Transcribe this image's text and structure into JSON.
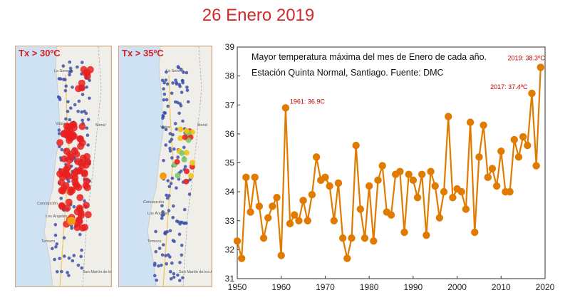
{
  "slide": {
    "title": "26 Enero 2019"
  },
  "maps": [
    {
      "label": "Tx > 30ºC"
    },
    {
      "label": "Tx > 35ºC"
    }
  ],
  "map_place_labels": {
    "la_serena": "La Serena",
    "valparaiso": "Valpa",
    "concepcion": "Concepción",
    "los_angeles": "Los Ángeles",
    "temuco": "Temuco",
    "mendoza": "Mend",
    "san_martin": "San Martín de los Andes"
  },
  "colors": {
    "series": "#e07b00",
    "annotation": "#c00000",
    "title": "#d22a2a",
    "hot_dot": "#e8201f",
    "station_dot": "#3c4fa8",
    "ocean": "#cfe2f3",
    "land": "#efeee9"
  },
  "chart_data": {
    "type": "line",
    "title": "Mayor temperatura máxima del mes de Enero de cada año.",
    "subtitle": "Estación Quinta Normal, Santiago. Fuente: DMC",
    "xlabel": "",
    "ylabel": "",
    "xlim": [
      1950,
      2020
    ],
    "ylim": [
      31,
      39
    ],
    "xticks": [
      1950,
      1960,
      1970,
      1980,
      1990,
      2000,
      2010,
      2020
    ],
    "yticks": [
      31,
      32,
      33,
      34,
      35,
      36,
      37,
      38,
      39
    ],
    "grid": false,
    "x": [
      1950,
      1951,
      1952,
      1953,
      1954,
      1955,
      1956,
      1957,
      1958,
      1959,
      1960,
      1961,
      1962,
      1963,
      1964,
      1965,
      1966,
      1967,
      1968,
      1969,
      1970,
      1971,
      1972,
      1973,
      1974,
      1975,
      1976,
      1977,
      1978,
      1979,
      1980,
      1981,
      1982,
      1983,
      1984,
      1985,
      1986,
      1987,
      1988,
      1989,
      1990,
      1991,
      1992,
      1993,
      1994,
      1995,
      1996,
      1997,
      1998,
      1999,
      2000,
      2001,
      2002,
      2003,
      2004,
      2005,
      2006,
      2007,
      2008,
      2009,
      2010,
      2011,
      2012,
      2013,
      2014,
      2015,
      2016,
      2017,
      2018,
      2019
    ],
    "series": [
      {
        "values": [
          32.3,
          31.7,
          34.5,
          33.3,
          34.5,
          33.5,
          32.4,
          33.1,
          33.5,
          33.8,
          31.8,
          36.9,
          32.9,
          33.2,
          33.0,
          33.7,
          33.0,
          33.9,
          35.2,
          34.4,
          34.5,
          34.2,
          33.0,
          34.3,
          32.4,
          31.7,
          32.4,
          35.6,
          33.4,
          32.4,
          34.2,
          32.3,
          34.4,
          34.9,
          33.3,
          33.2,
          34.6,
          34.7,
          32.6,
          34.6,
          34.4,
          33.8,
          34.6,
          32.5,
          34.7,
          34.2,
          33.1,
          34.0,
          36.6,
          33.8,
          34.1,
          34.0,
          33.4,
          36.4,
          32.6,
          35.2,
          36.3,
          34.5,
          34.8,
          34.2,
          35.4,
          34.0,
          34.0,
          35.8,
          35.2,
          35.9,
          35.6,
          37.4,
          34.9,
          38.3
        ]
      }
    ],
    "annotations": [
      {
        "x": 1961,
        "y": 36.9,
        "text": "1961: 36.9C"
      },
      {
        "x": 2017,
        "y": 37.4,
        "text": "2017: 37.4ºC"
      },
      {
        "x": 2019,
        "y": 38.3,
        "text": "2019: 38.3ºC"
      }
    ]
  }
}
